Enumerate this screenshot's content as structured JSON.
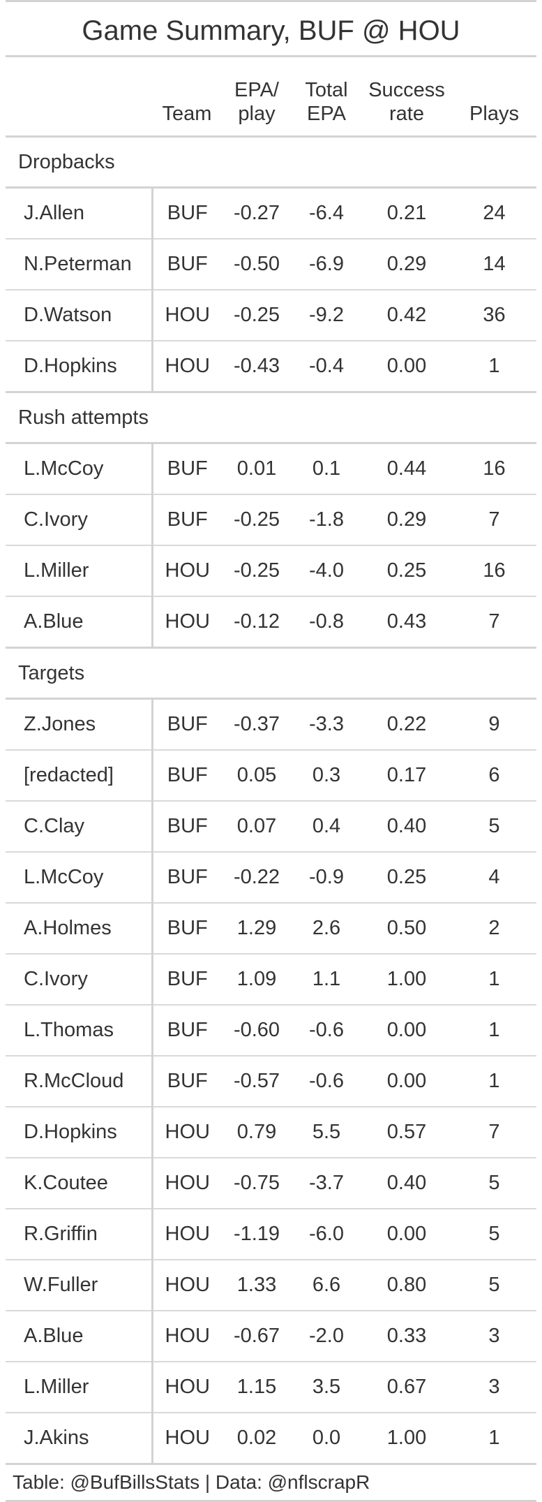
{
  "title": "Game Summary, BUF @ HOU",
  "columns": {
    "player": "",
    "team": "Team",
    "epa_line1": "EPA/",
    "epa_line2": "play",
    "total_line1": "Total",
    "total_line2": "EPA",
    "success_line1": "Success",
    "success_line2": "rate",
    "plays": "Plays"
  },
  "groups": [
    {
      "label": "Dropbacks",
      "rows": [
        [
          "J.Allen",
          "BUF",
          "-0.27",
          "-6.4",
          "0.21",
          "24"
        ],
        [
          "N.Peterman",
          "BUF",
          "-0.50",
          "-6.9",
          "0.29",
          "14"
        ],
        [
          "D.Watson",
          "HOU",
          "-0.25",
          "-9.2",
          "0.42",
          "36"
        ],
        [
          "D.Hopkins",
          "HOU",
          "-0.43",
          "-0.4",
          "0.00",
          "1"
        ]
      ]
    },
    {
      "label": "Rush attempts",
      "rows": [
        [
          "L.McCoy",
          "BUF",
          "0.01",
          "0.1",
          "0.44",
          "16"
        ],
        [
          "C.Ivory",
          "BUF",
          "-0.25",
          "-1.8",
          "0.29",
          "7"
        ],
        [
          "L.Miller",
          "HOU",
          "-0.25",
          "-4.0",
          "0.25",
          "16"
        ],
        [
          "A.Blue",
          "HOU",
          "-0.12",
          "-0.8",
          "0.43",
          "7"
        ]
      ]
    },
    {
      "label": "Targets",
      "rows": [
        [
          "Z.Jones",
          "BUF",
          "-0.37",
          "-3.3",
          "0.22",
          "9"
        ],
        [
          "[redacted]",
          "BUF",
          "0.05",
          "0.3",
          "0.17",
          "6"
        ],
        [
          "C.Clay",
          "BUF",
          "0.07",
          "0.4",
          "0.40",
          "5"
        ],
        [
          "L.McCoy",
          "BUF",
          "-0.22",
          "-0.9",
          "0.25",
          "4"
        ],
        [
          "A.Holmes",
          "BUF",
          "1.29",
          "2.6",
          "0.50",
          "2"
        ],
        [
          "C.Ivory",
          "BUF",
          "1.09",
          "1.1",
          "1.00",
          "1"
        ],
        [
          "L.Thomas",
          "BUF",
          "-0.60",
          "-0.6",
          "0.00",
          "1"
        ],
        [
          "R.McCloud",
          "BUF",
          "-0.57",
          "-0.6",
          "0.00",
          "1"
        ],
        [
          "D.Hopkins",
          "HOU",
          "0.79",
          "5.5",
          "0.57",
          "7"
        ],
        [
          "K.Coutee",
          "HOU",
          "-0.75",
          "-3.7",
          "0.40",
          "5"
        ],
        [
          "R.Griffin",
          "HOU",
          "-1.19",
          "-6.0",
          "0.00",
          "5"
        ],
        [
          "W.Fuller",
          "HOU",
          "1.33",
          "6.6",
          "0.80",
          "5"
        ],
        [
          "A.Blue",
          "HOU",
          "-0.67",
          "-2.0",
          "0.33",
          "3"
        ],
        [
          "L.Miller",
          "HOU",
          "1.15",
          "3.5",
          "0.67",
          "3"
        ],
        [
          "J.Akins",
          "HOU",
          "0.02",
          "0.0",
          "1.00",
          "1"
        ]
      ]
    }
  ],
  "footer": "Table: @BufBillsStats | Data: @nflscrapR"
}
